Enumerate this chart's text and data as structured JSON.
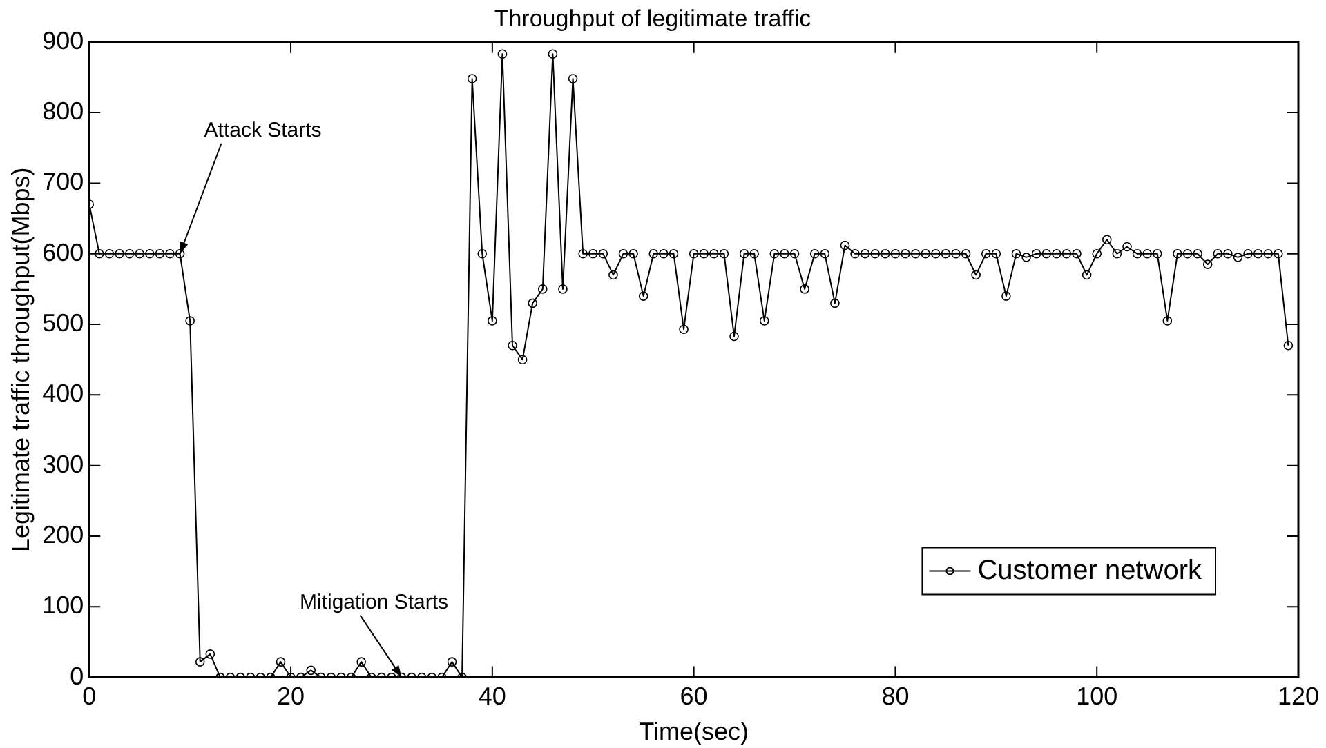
{
  "chart_data": {
    "type": "line",
    "title": "Throughput of legitimate traffic",
    "xlabel": "Time(sec)",
    "ylabel": "Legitimate traffic throughput(Mbps)",
    "x": [
      0,
      1,
      2,
      3,
      4,
      5,
      6,
      7,
      8,
      9,
      10,
      11,
      12,
      13,
      14,
      15,
      16,
      17,
      18,
      19,
      20,
      21,
      22,
      23,
      24,
      25,
      26,
      27,
      28,
      29,
      30,
      31,
      32,
      33,
      34,
      35,
      36,
      37,
      38,
      39,
      40,
      41,
      42,
      43,
      44,
      45,
      46,
      47,
      48,
      49,
      50,
      51,
      52,
      53,
      54,
      55,
      56,
      57,
      58,
      59,
      60,
      61,
      62,
      63,
      64,
      65,
      66,
      67,
      68,
      69,
      70,
      71,
      72,
      73,
      74,
      75,
      76,
      77,
      78,
      79,
      80,
      81,
      82,
      83,
      84,
      85,
      86,
      87,
      88,
      89,
      90,
      91,
      92,
      93,
      94,
      95,
      96,
      97,
      98,
      99,
      100,
      101,
      102,
      103,
      104,
      105,
      106,
      107,
      108,
      109,
      110,
      111,
      112,
      113,
      114,
      115,
      116,
      117,
      118,
      119
    ],
    "series": [
      {
        "name": "Customer network",
        "color": "#000000",
        "values": [
          670,
          600,
          600,
          600,
          600,
          600,
          600,
          600,
          600,
          600,
          505,
          22,
          33,
          0,
          0,
          0,
          0,
          0,
          0,
          22,
          0,
          0,
          10,
          0,
          0,
          0,
          0,
          22,
          0,
          0,
          0,
          0,
          0,
          0,
          0,
          0,
          22,
          0,
          848,
          600,
          505,
          883,
          470,
          450,
          530,
          550,
          883,
          550,
          848,
          600,
          600,
          600,
          570,
          600,
          600,
          540,
          600,
          600,
          600,
          493,
          600,
          600,
          600,
          600,
          483,
          600,
          600,
          505,
          600,
          600,
          600,
          550,
          600,
          600,
          530,
          612,
          600,
          600,
          600,
          600,
          600,
          600,
          600,
          600,
          600,
          600,
          600,
          600,
          570,
          600,
          600,
          540,
          600,
          595,
          600,
          600,
          600,
          600,
          600,
          570,
          600,
          620,
          600,
          610,
          600,
          600,
          600,
          505,
          600,
          600,
          600,
          585,
          600,
          600,
          595,
          600,
          600,
          600,
          600,
          470
        ]
      }
    ],
    "xlim": [
      0,
      120
    ],
    "ylim": [
      0,
      900
    ],
    "xticks": [
      0,
      20,
      40,
      60,
      80,
      100,
      120
    ],
    "yticks": [
      0,
      100,
      200,
      300,
      400,
      500,
      600,
      700,
      800,
      900
    ],
    "annotations": [
      {
        "text": "Attack Starts",
        "x": 9,
        "y": 600
      },
      {
        "text": "Mitigation Starts",
        "x": 31,
        "y": 0
      }
    ],
    "legend": "bottom right",
    "marker": "circle",
    "line_style": "solid",
    "grid": false
  }
}
